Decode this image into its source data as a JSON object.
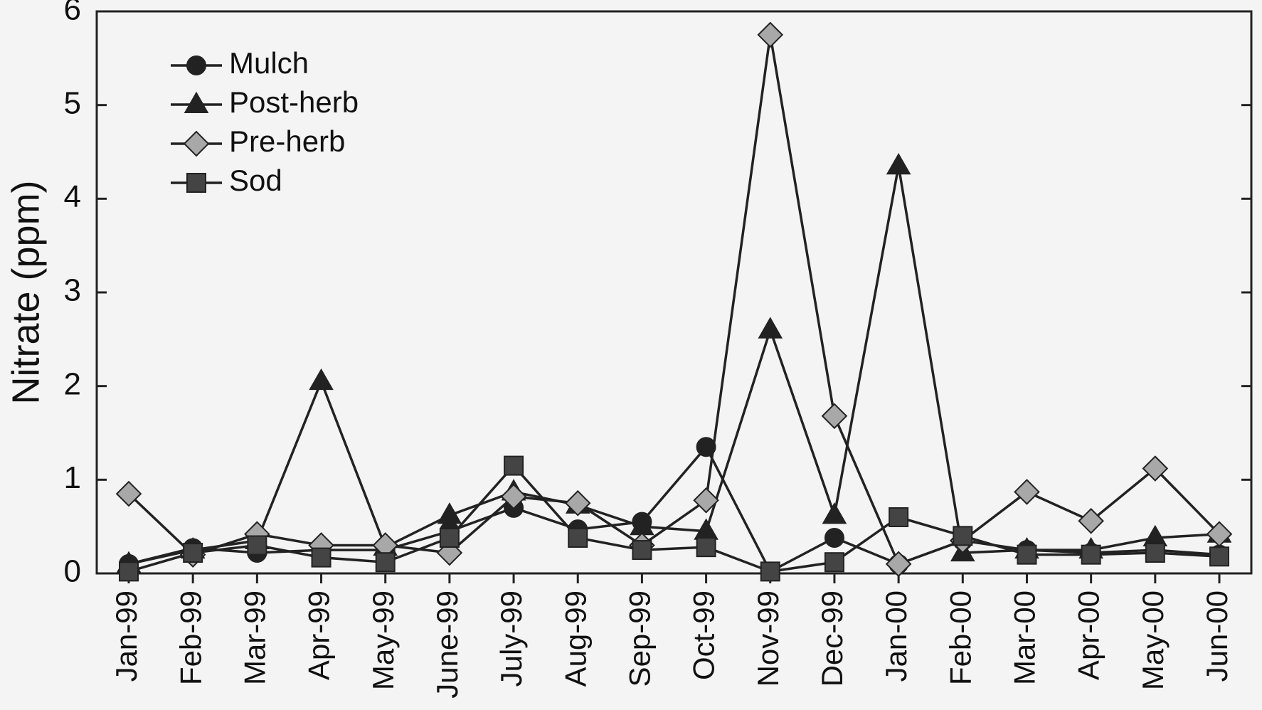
{
  "chart_data": {
    "type": "line",
    "y_label": "Nitrate (ppm)",
    "categories": [
      "Jan-99",
      "Feb-99",
      "Mar-99",
      "Apr-99",
      "May-99",
      "June-99",
      "July-99",
      "Aug-99",
      "Sep-99",
      "Oct-99",
      "Nov-99",
      "Dec-99",
      "Jan-00",
      "Feb-00",
      "Mar-00",
      "Apr-00",
      "May-00",
      "Jun-00"
    ],
    "ylim": [
      0,
      6
    ],
    "yticks": [
      0,
      1,
      2,
      3,
      4,
      5,
      6
    ],
    "legend": "upper-left",
    "series": [
      {
        "name": "Mulch",
        "color": "#222222",
        "marker": "circle",
        "values": [
          0.1,
          0.27,
          0.22,
          0.25,
          0.25,
          0.45,
          0.7,
          0.47,
          0.55,
          1.35,
          0.02,
          0.38,
          0.1,
          0.35,
          0.25,
          0.22,
          0.25,
          0.2
        ]
      },
      {
        "name": "Post-herb",
        "color": "#222222",
        "marker": "triangle",
        "values": [
          0.1,
          0.25,
          0.35,
          2.05,
          0.28,
          0.62,
          0.87,
          0.73,
          0.5,
          0.45,
          2.6,
          0.62,
          4.35,
          0.22,
          0.25,
          0.25,
          0.38,
          0.42
        ]
      },
      {
        "name": "Pre-herb",
        "color": "#a8a8a8",
        "marker": "diamond",
        "values": [
          0.85,
          0.2,
          0.42,
          0.3,
          0.3,
          0.22,
          0.82,
          0.75,
          0.3,
          0.78,
          5.75,
          1.68,
          0.1,
          0.35,
          0.87,
          0.56,
          1.12,
          0.42
        ]
      },
      {
        "name": "Sod",
        "color": "#444444",
        "marker": "square",
        "values": [
          0.02,
          0.22,
          0.3,
          0.17,
          0.12,
          0.38,
          1.15,
          0.38,
          0.25,
          0.28,
          0.02,
          0.12,
          0.6,
          0.4,
          0.2,
          0.2,
          0.22,
          0.18
        ]
      }
    ]
  }
}
